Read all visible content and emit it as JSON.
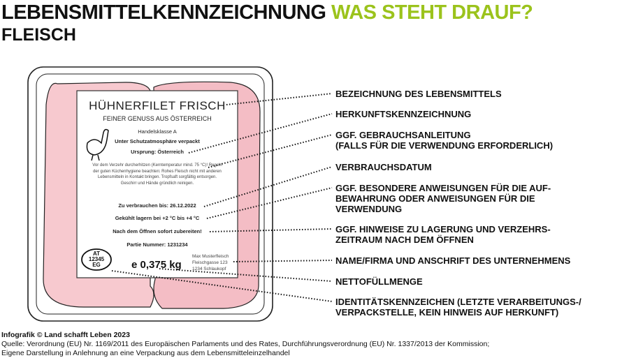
{
  "header": {
    "title_main": "LEBENSMITTELKENNZEICHNUNG",
    "title_accent": "WAS STEHT DRAUF?",
    "subtitle": "FLEISCH"
  },
  "label": {
    "product": "HÜHNERFILET FRISCH",
    "tagline": "FEINER GENUSS AUS ÖSTERREICH",
    "class": "Handelsklasse A",
    "atmosphere": "Unter Schutzatmosphäre verpackt",
    "origin": "Ursprung: Österreich",
    "instructions": "Vor dem Verzehr durcherhitzen (Kerntemperatur mind. 75 °C)! Regeln der guten Küchenhygiene beachten: Rohes Fleisch nicht mit anderen Lebensmitteln in Kontakt bringen. Tropfsaft sorgfältig entsorgen. Geschirr und Hände gründlich reinigen.",
    "use_by": "Zu verbrauchen bis: 26.12.2022",
    "storage": "Gekühlt lagern bei +2 °C bis +4 °C",
    "after_opening": "Nach dem Öffnen sofort zubereiten!",
    "batch": "Partie Nummer: 1231234",
    "id_mark": [
      "AT",
      "12345",
      "EG"
    ],
    "weight": "e 0,375 kg",
    "company": [
      "Max Musterfleisch",
      "Fleischgasse 123",
      "1234 Schlaukopf"
    ]
  },
  "callouts": [
    "BEZEICHNUNG DES LEBENSMITTELS",
    "HERKUNFTSKENNZEICHNUNG",
    "GGF. GEBRAUCHSANLEITUNG\n(FALLS FÜR DIE VERWENDUNG ERFORDERLICH)",
    "VERBRAUCHSDATUM",
    "GGF. BESONDERE ANWEISUNGEN FÜR DIE AUF-\nBEWAHRUNG ODER ANWEISUNGEN FÜR DIE\nVERWENDUNG",
    "GGF. HINWEISE ZU LAGERUNG UND VERZEHRS-\nZEITRAUM NACH DEM ÖFFNEN",
    "NAME/FIRMA UND ANSCHRIFT DES UNTERNEHMENS",
    "NETTOFÜLLMENGE",
    "IDENTITÄTSKENNZEICHEN (LETZTE VERARBEITUNGS-/\nVERPACKSTELLE, KEIN HINWEIS AUF HERKUNFT)"
  ],
  "footer": {
    "credit_bold": "Infografik © Land schafft Leben 2023",
    "source": "Quelle: Verordnung (EU) Nr. 1169/2011 des Europäischen Parlaments und des Rates, Durchführungsverordnung (EU) Nr. 1337/2013 der Kommission;",
    "note": "Eigene Darstellung in Anlehnung an eine Verpackung aus dem Lebensmitteleinzelhandel"
  },
  "colors": {
    "accent": "#9bc31c",
    "meat": "#f7c9cf"
  }
}
